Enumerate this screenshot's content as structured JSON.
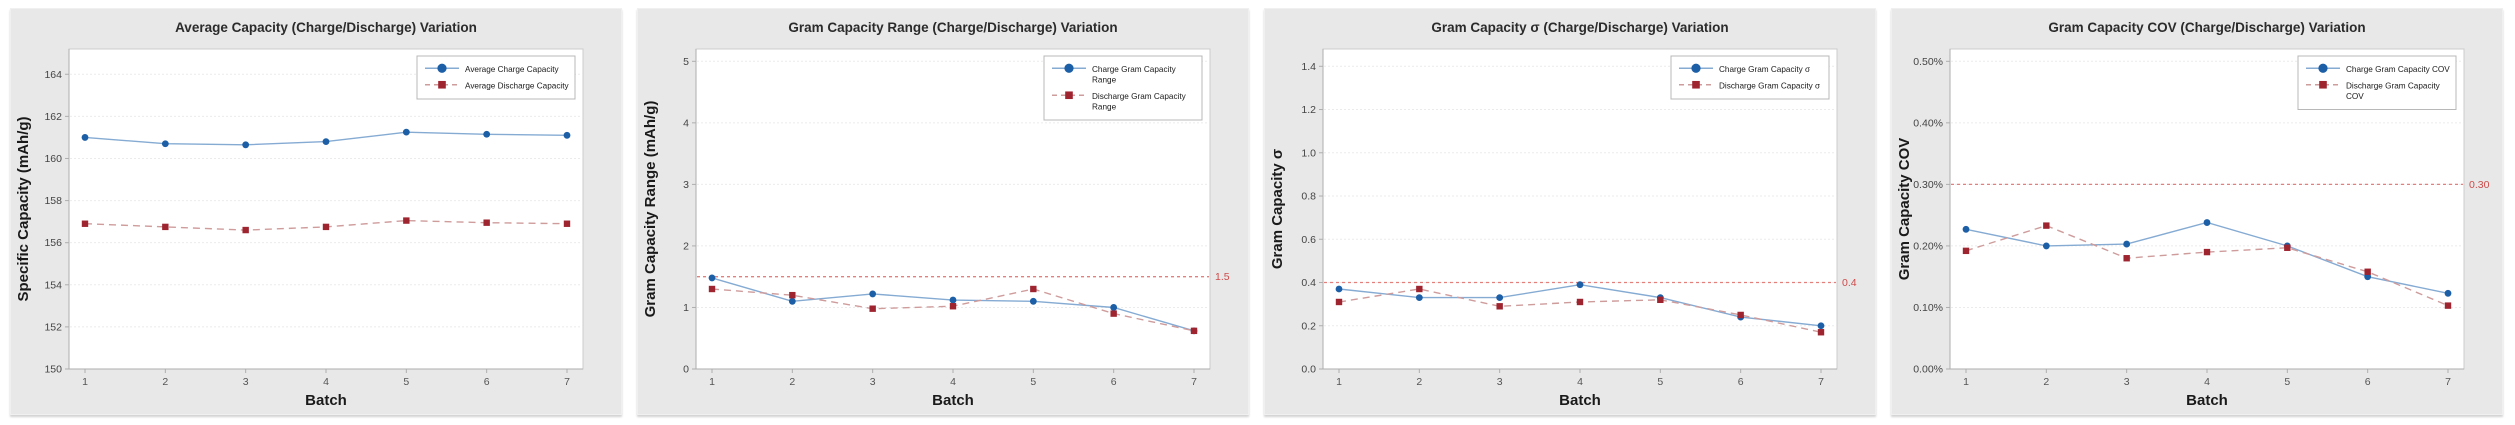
{
  "page": {
    "description": "Four battery gram-capacity statistics line charts (charge vs discharge) by batch"
  },
  "chart_data": [
    {
      "id": "average-capacity",
      "type": "line",
      "title": "Average Capacity (Charge/Discharge) Variation",
      "xlabel": "Batch",
      "ylabel": "Specific Capacity (mAh/g)",
      "x": [
        1,
        2,
        3,
        4,
        5,
        6,
        7
      ],
      "xtick_labels": [
        "1",
        "2",
        "3",
        "4",
        "5",
        "6",
        "7"
      ],
      "ylim": [
        150,
        165.2
      ],
      "yticks": [
        {
          "v": 150,
          "t": "150"
        },
        {
          "v": 152,
          "t": "152"
        },
        {
          "v": 154,
          "t": "154"
        },
        {
          "v": 156,
          "t": "156"
        },
        {
          "v": 158,
          "t": "158"
        },
        {
          "v": 160,
          "t": "160"
        },
        {
          "v": 162,
          "t": "162"
        },
        {
          "v": 164,
          "t": "164"
        }
      ],
      "grid": true,
      "legend_position": "top-right",
      "ref_line": null,
      "series": [
        {
          "name": "Average Charge Capacity",
          "legend_lines": [
            "Average Charge Capacity"
          ],
          "marker": "circle",
          "dash": false,
          "line_color": "#85abd3",
          "marker_color": "#1d5fa7",
          "values": [
            161.0,
            160.7,
            160.65,
            160.8,
            161.25,
            161.15,
            161.1
          ]
        },
        {
          "name": "Average Discharge Capacity",
          "legend_lines": [
            "Average Discharge Capacity"
          ],
          "marker": "square",
          "dash": true,
          "line_color": "#cf9c9c",
          "marker_color": "#9e2430",
          "values": [
            156.9,
            156.75,
            156.6,
            156.75,
            157.05,
            156.95,
            156.9
          ]
        }
      ]
    },
    {
      "id": "gram-capacity-range",
      "type": "line",
      "title": "Gram Capacity Range (Charge/Discharge) Variation",
      "xlabel": "Batch",
      "ylabel": "Gram Capacity Range  (mAh/g)",
      "x": [
        1,
        2,
        3,
        4,
        5,
        6,
        7
      ],
      "xtick_labels": [
        "1",
        "2",
        "3",
        "4",
        "5",
        "6",
        "7"
      ],
      "ylim": [
        0,
        5.2
      ],
      "yticks": [
        {
          "v": 0,
          "t": "0"
        },
        {
          "v": 1,
          "t": "1"
        },
        {
          "v": 2,
          "t": "2"
        },
        {
          "v": 3,
          "t": "3"
        },
        {
          "v": 4,
          "t": "4"
        },
        {
          "v": 5,
          "t": "5"
        }
      ],
      "grid": true,
      "legend_position": "top-right",
      "ref_line": {
        "value": 1.5,
        "label": "1.5",
        "line_color": "#e2807e",
        "label_color": "#cf4a4a"
      },
      "series": [
        {
          "name": "Charge Gram Capacity Range",
          "legend_lines": [
            "Charge Gram Capacity",
            "Range"
          ],
          "marker": "circle",
          "dash": false,
          "line_color": "#85abd3",
          "marker_color": "#1d5fa7",
          "values": [
            1.48,
            1.1,
            1.22,
            1.12,
            1.1,
            1.0,
            0.62
          ]
        },
        {
          "name": "Discharge Gram Capacity Range",
          "legend_lines": [
            "Discharge Gram Capacity",
            "Range"
          ],
          "marker": "square",
          "dash": true,
          "line_color": "#cf9c9c",
          "marker_color": "#9e2430",
          "values": [
            1.3,
            1.2,
            0.98,
            1.02,
            1.3,
            0.9,
            0.62
          ]
        }
      ]
    },
    {
      "id": "gram-capacity-sigma",
      "type": "line",
      "title": "Gram Capacity σ  (Charge/Discharge) Variation",
      "xlabel": "Batch",
      "ylabel": "Gram Capacity σ",
      "x": [
        1,
        2,
        3,
        4,
        5,
        6,
        7
      ],
      "xtick_labels": [
        "1",
        "2",
        "3",
        "4",
        "5",
        "6",
        "7"
      ],
      "ylim": [
        0,
        1.48
      ],
      "yticks": [
        {
          "v": 0.0,
          "t": "0.0"
        },
        {
          "v": 0.2,
          "t": "0.2"
        },
        {
          "v": 0.4,
          "t": "0.4"
        },
        {
          "v": 0.6,
          "t": "0.6"
        },
        {
          "v": 0.8,
          "t": "0.8"
        },
        {
          "v": 1.0,
          "t": "1.0"
        },
        {
          "v": 1.2,
          "t": "1.2"
        },
        {
          "v": 1.4,
          "t": "1.4"
        }
      ],
      "grid": true,
      "legend_position": "top-right",
      "ref_line": {
        "value": 0.4,
        "label": "0.4",
        "line_color": "#e2807e",
        "label_color": "#cf4a4a"
      },
      "series": [
        {
          "name": "Charge Gram Capacity σ",
          "legend_lines": [
            "Charge Gram Capacity σ"
          ],
          "marker": "circle",
          "dash": false,
          "line_color": "#85abd3",
          "marker_color": "#1d5fa7",
          "values": [
            0.37,
            0.33,
            0.33,
            0.39,
            0.33,
            0.24,
            0.2
          ]
        },
        {
          "name": "Discharge Gram Capacity σ",
          "legend_lines": [
            "Discharge Gram Capacity σ"
          ],
          "marker": "square",
          "dash": true,
          "line_color": "#cf9c9c",
          "marker_color": "#9e2430",
          "values": [
            0.31,
            0.37,
            0.29,
            0.31,
            0.32,
            0.25,
            0.17
          ]
        }
      ]
    },
    {
      "id": "gram-capacity-cov",
      "type": "line",
      "title": "Gram Capacity COV (Charge/Discharge) Variation",
      "xlabel": "Batch",
      "ylabel": "Gram Capacity COV",
      "x": [
        1,
        2,
        3,
        4,
        5,
        6,
        7
      ],
      "xtick_labels": [
        "1",
        "2",
        "3",
        "4",
        "5",
        "6",
        "7"
      ],
      "ylim": [
        0,
        0.52
      ],
      "yticks": [
        {
          "v": 0.0,
          "t": "0.00%"
        },
        {
          "v": 0.1,
          "t": "0.10%"
        },
        {
          "v": 0.2,
          "t": "0.20%"
        },
        {
          "v": 0.3,
          "t": "0.30%"
        },
        {
          "v": 0.4,
          "t": "0.40%"
        },
        {
          "v": 0.5,
          "t": "0.50%"
        }
      ],
      "grid": true,
      "legend_position": "top-right",
      "ref_line": {
        "value": 0.3,
        "label": "0.30",
        "line_color": "#e2807e",
        "label_color": "#cf4a4a"
      },
      "series": [
        {
          "name": "Charge Gram Capacity COV",
          "legend_lines": [
            "Charge Gram Capacity COV"
          ],
          "marker": "circle",
          "dash": false,
          "line_color": "#85abd3",
          "marker_color": "#1d5fa7",
          "values": [
            0.227,
            0.2,
            0.203,
            0.238,
            0.2,
            0.15,
            0.123
          ]
        },
        {
          "name": "Discharge Gram Capacity COV",
          "legend_lines": [
            "Discharge Gram Capacity",
            "COV"
          ],
          "marker": "square",
          "dash": true,
          "line_color": "#cf9c9c",
          "marker_color": "#9e2430",
          "values": [
            0.192,
            0.233,
            0.18,
            0.19,
            0.197,
            0.158,
            0.103
          ]
        }
      ]
    }
  ]
}
